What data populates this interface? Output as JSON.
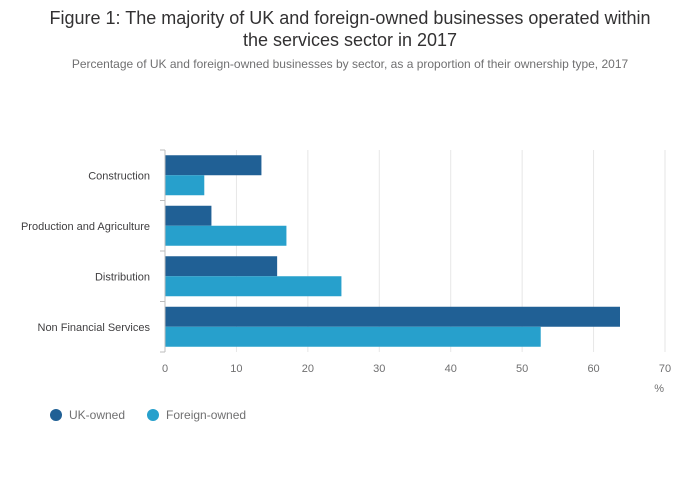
{
  "title_line1": "Figure 1: The majority of UK and foreign-owned businesses operated within",
  "title_line2": "the services sector in 2017",
  "subtitle": "Percentage of UK and foreign-owned businesses by sector, as a proportion of their ownership type, 2017",
  "colors": {
    "uk": "#206095",
    "foreign": "#27a0cc",
    "grid": "#e6e6e6",
    "axis": "#bdbdbd"
  },
  "chart_data": {
    "type": "bar",
    "orientation": "horizontal",
    "categories": [
      "Construction",
      "Production and Agriculture",
      "Distribution",
      "Non Financial Services"
    ],
    "series": [
      {
        "name": "UK-owned",
        "values": [
          13.5,
          6.5,
          15.7,
          63.7
        ]
      },
      {
        "name": "Foreign-owned",
        "values": [
          5.5,
          17.0,
          24.7,
          52.6
        ]
      }
    ],
    "xlim": [
      0,
      70
    ],
    "xticks": [
      0,
      10,
      20,
      30,
      40,
      50,
      60,
      70
    ],
    "xlabel": "%",
    "grid": true,
    "legend_position": "bottom-left"
  }
}
